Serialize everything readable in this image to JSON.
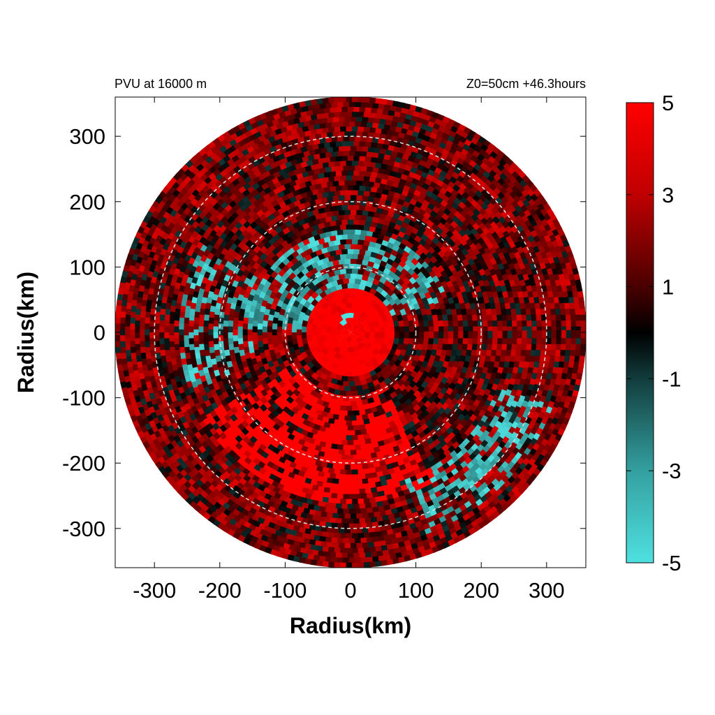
{
  "chart_data": {
    "type": "heatmap",
    "title_left": "PVU at 16000 m",
    "title_right": "Z0=50cm  +46.3hours",
    "xlabel": "Radius(km)",
    "ylabel": "Radius(km)",
    "xlim": [
      -360,
      360
    ],
    "ylim": [
      -360,
      360
    ],
    "x_ticks": [
      -300,
      -200,
      -100,
      0,
      100,
      200,
      300
    ],
    "y_ticks": [
      300,
      200,
      100,
      0,
      -100,
      -200,
      -300
    ],
    "data_extent_radius_km": 360,
    "range_rings_km": [
      100,
      200,
      300
    ],
    "colorbar": {
      "min": -5,
      "max": 5,
      "ticks": [
        5,
        3,
        1,
        -1,
        -3,
        -5
      ],
      "colors": {
        "low": "#4fe0e0",
        "mid": "#000000",
        "high": "#ff0000"
      }
    },
    "field_description": {
      "center_value_approx": 5,
      "cyan_region_center_deg": 100,
      "cyan_region_radius_km": [
        40,
        160
      ]
    }
  }
}
